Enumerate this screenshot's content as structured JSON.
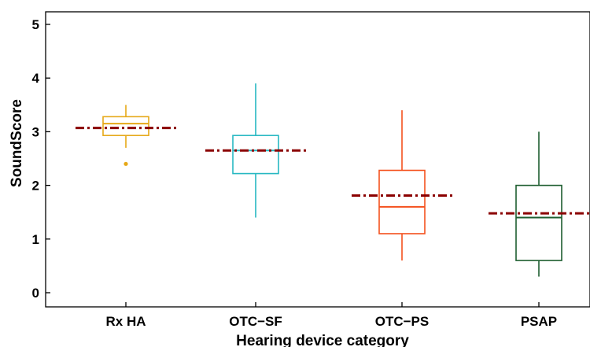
{
  "chart_data": {
    "type": "box",
    "title": "",
    "xlabel": "Hearing device category",
    "ylabel": "SoundScore",
    "ylim": [
      -0.3,
      5.3
    ],
    "yticks": [
      0,
      1,
      2,
      3,
      4,
      5
    ],
    "grid": false,
    "categories": [
      "Rx HA",
      "OTC−SF",
      "OTC−PS",
      "PSAP"
    ],
    "mean_line_color": "#8b0000",
    "boxes": [
      {
        "category": "Rx HA",
        "color": "#e6a817",
        "whisker_low": 2.7,
        "q1": 2.93,
        "median": 3.15,
        "q3": 3.28,
        "whisker_high": 3.5,
        "outliers": [
          2.4
        ],
        "mean": 3.07
      },
      {
        "category": "OTC−SF",
        "color": "#27b8c2",
        "whisker_low": 1.4,
        "q1": 2.22,
        "median": 2.65,
        "q3": 2.93,
        "whisker_high": 3.9,
        "outliers": [],
        "mean": 2.65
      },
      {
        "category": "OTC−PS",
        "color": "#f4511e",
        "whisker_low": 0.6,
        "q1": 1.1,
        "median": 1.6,
        "q3": 2.28,
        "whisker_high": 3.4,
        "outliers": [],
        "mean": 1.81
      },
      {
        "category": "PSAP",
        "color": "#1e5e30",
        "whisker_low": 0.3,
        "q1": 0.6,
        "median": 1.4,
        "q3": 2.0,
        "whisker_high": 3.0,
        "outliers": [],
        "mean": 1.48
      }
    ]
  }
}
